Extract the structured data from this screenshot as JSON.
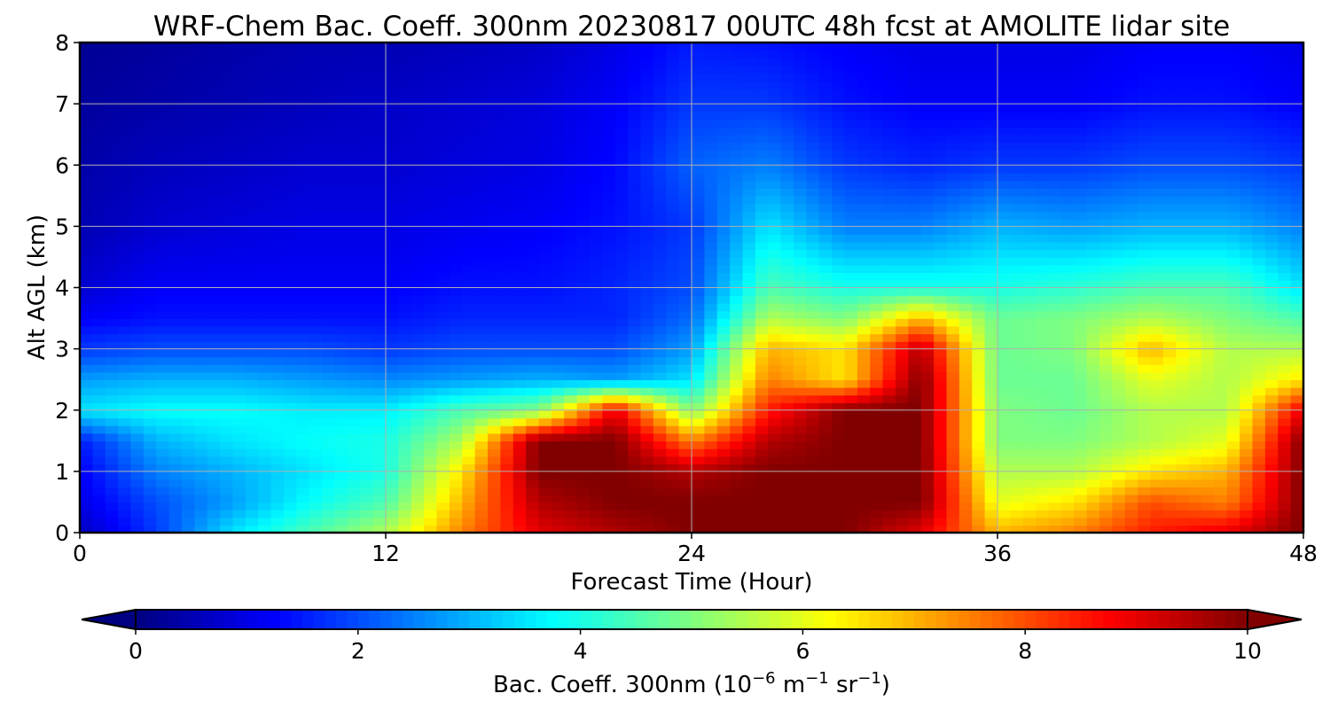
{
  "chart_data": {
    "type": "heatmap",
    "title": "WRF-Chem Bac. Coeff. 300nm  20230817 00UTC 48h fcst at AMOLITE lidar site",
    "xlabel": "Forecast Time (Hour)",
    "ylabel": "Alt AGL (km)",
    "xlim": [
      0,
      48
    ],
    "ylim": [
      0,
      8
    ],
    "x_ticks": [
      0,
      12,
      24,
      36,
      48
    ],
    "y_ticks": [
      0,
      1,
      2,
      3,
      4,
      5,
      6,
      7,
      8
    ],
    "grid": true,
    "colormap": "jet",
    "colorbar": {
      "label_prefix": "Bac. Coeff. 300nm  (10",
      "label_exp1": "−6",
      "label_mid": " m",
      "label_exp2": "−1",
      "label_mid2": " sr",
      "label_exp3": "−1",
      "label_suffix": ")",
      "range": [
        0,
        10
      ],
      "ticks": [
        0,
        2,
        4,
        6,
        8,
        10
      ],
      "extend": "both",
      "orientation": "horizontal"
    },
    "x": [
      0,
      3,
      6,
      9,
      12,
      15,
      18,
      21,
      24,
      27,
      30,
      33,
      36,
      39,
      42,
      45,
      48
    ],
    "y": [
      0,
      0.5,
      1,
      1.5,
      2,
      2.5,
      3,
      3.5,
      4,
      5,
      6,
      7,
      8
    ],
    "values": [
      [
        0.6,
        1.8,
        3.5,
        4.5,
        5.5,
        7.5,
        9.0,
        9.5,
        10,
        10,
        10,
        9.0,
        7.0,
        7.5,
        8.5,
        9.0,
        10
      ],
      [
        1.0,
        2.0,
        2.8,
        3.8,
        4.5,
        7.0,
        9.5,
        10,
        10,
        10,
        10,
        10,
        6.0,
        6.5,
        8.0,
        7.5,
        10
      ],
      [
        1.2,
        2.5,
        3.0,
        3.5,
        4.0,
        6.5,
        10,
        10,
        9.5,
        10,
        10,
        10,
        5.5,
        5.5,
        6.5,
        7.0,
        10
      ],
      [
        1.5,
        3.0,
        3.5,
        3.8,
        4.0,
        5.5,
        10,
        10,
        7.5,
        9.5,
        10,
        10,
        5.0,
        5.0,
        5.5,
        6.0,
        10
      ],
      [
        3.5,
        3.8,
        3.8,
        3.6,
        3.6,
        4.5,
        5.0,
        9.0,
        5.0,
        8.5,
        10,
        10,
        5.0,
        4.8,
        5.5,
        5.5,
        9.0
      ],
      [
        2.8,
        3.0,
        3.0,
        2.8,
        2.6,
        2.8,
        3.0,
        2.8,
        3.5,
        7.5,
        6.5,
        10,
        4.8,
        4.8,
        6.0,
        5.5,
        6.5
      ],
      [
        1.8,
        2.0,
        2.0,
        2.0,
        1.8,
        2.0,
        2.0,
        2.0,
        2.8,
        7.0,
        6.5,
        9.5,
        4.8,
        5.0,
        7.0,
        5.5,
        5.5
      ],
      [
        1.2,
        1.4,
        1.4,
        1.4,
        1.4,
        1.6,
        1.6,
        1.6,
        2.3,
        5.5,
        5.0,
        7.0,
        4.8,
        5.0,
        5.5,
        5.0,
        4.5
      ],
      [
        0.8,
        1.2,
        1.2,
        1.2,
        1.2,
        1.4,
        1.4,
        1.6,
        2.0,
        4.5,
        4.0,
        4.0,
        4.0,
        4.2,
        4.5,
        4.5,
        3.5
      ],
      [
        0.5,
        0.8,
        0.9,
        1.0,
        1.0,
        1.1,
        1.2,
        1.4,
        1.8,
        3.5,
        2.5,
        2.5,
        3.0,
        2.8,
        3.0,
        3.0,
        2.5
      ],
      [
        0.4,
        0.6,
        0.7,
        0.8,
        0.8,
        0.9,
        1.0,
        1.3,
        2.2,
        2.5,
        1.8,
        1.6,
        1.8,
        1.8,
        2.0,
        2.0,
        1.8
      ],
      [
        0.3,
        0.4,
        0.5,
        0.6,
        0.7,
        0.8,
        0.9,
        1.2,
        1.8,
        1.8,
        1.4,
        1.2,
        1.2,
        1.2,
        1.4,
        1.4,
        1.2
      ],
      [
        0.2,
        0.3,
        0.4,
        0.5,
        0.5,
        0.6,
        0.7,
        1.0,
        1.5,
        1.4,
        1.2,
        1.0,
        1.0,
        1.0,
        1.2,
        1.2,
        1.0
      ]
    ]
  }
}
